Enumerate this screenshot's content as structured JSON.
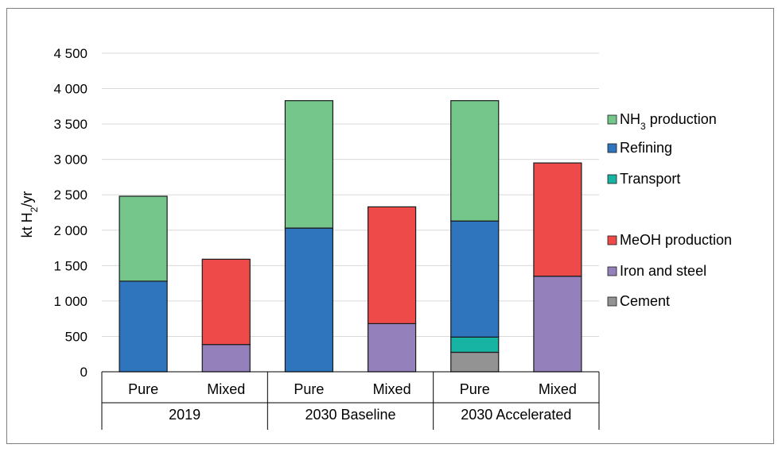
{
  "chart_data": {
    "type": "bar",
    "stacked": true,
    "ylabel": "kt H₂/yr",
    "ylabel_parts": {
      "pre": "kt H",
      "sub": "2",
      "post": "/yr"
    },
    "ylim": [
      0,
      4500
    ],
    "yticks": [
      0,
      500,
      1000,
      1500,
      2000,
      2500,
      3000,
      3500,
      4000,
      4500
    ],
    "ytick_labels": [
      "0",
      "500",
      "1 000",
      "1 500",
      "2 000",
      "2 500",
      "3 000",
      "3 500",
      "4 000",
      "4 500"
    ],
    "grid": true,
    "legend_position": "right",
    "categories": [
      "Pure",
      "Mixed",
      "Pure",
      "Mixed",
      "Pure",
      "Mixed"
    ],
    "groups": [
      {
        "label": "2019",
        "span": [
          0,
          1
        ]
      },
      {
        "label": "2030 Baseline",
        "span": [
          2,
          3
        ]
      },
      {
        "label": "2030 Accelerated",
        "span": [
          4,
          5
        ]
      }
    ],
    "series": [
      {
        "name": "Cement",
        "color": "#939393",
        "values": [
          0,
          0,
          0,
          0,
          275,
          0
        ]
      },
      {
        "name": "Transport",
        "color": "#17b3a3",
        "values": [
          0,
          0,
          0,
          0,
          215,
          0
        ]
      },
      {
        "name": "Refining",
        "color": "#2e75be",
        "values": [
          1280,
          0,
          2030,
          0,
          1640,
          0
        ]
      },
      {
        "name": "NH3 production",
        "color": "#74c68b",
        "values": [
          1200,
          0,
          1800,
          0,
          1700,
          0
        ]
      },
      {
        "name": "Iron and steel",
        "color": "#9480bb",
        "values": [
          0,
          385,
          0,
          680,
          0,
          1350
        ]
      },
      {
        "name": "MeOH production",
        "color": "#ee4a4a",
        "values": [
          0,
          1205,
          0,
          1650,
          0,
          1600
        ]
      }
    ],
    "legend": [
      {
        "label": "NH",
        "sub": "3",
        "post": " production",
        "color": "#74c68b"
      },
      {
        "label": "Refining",
        "color": "#2e75be"
      },
      {
        "label": "Transport",
        "color": "#17b3a3"
      },
      {
        "label": "MeOH production",
        "color": "#ee4a4a"
      },
      {
        "label": "Iron and steel",
        "color": "#9480bb"
      },
      {
        "label": "Cement",
        "color": "#939393"
      }
    ]
  }
}
